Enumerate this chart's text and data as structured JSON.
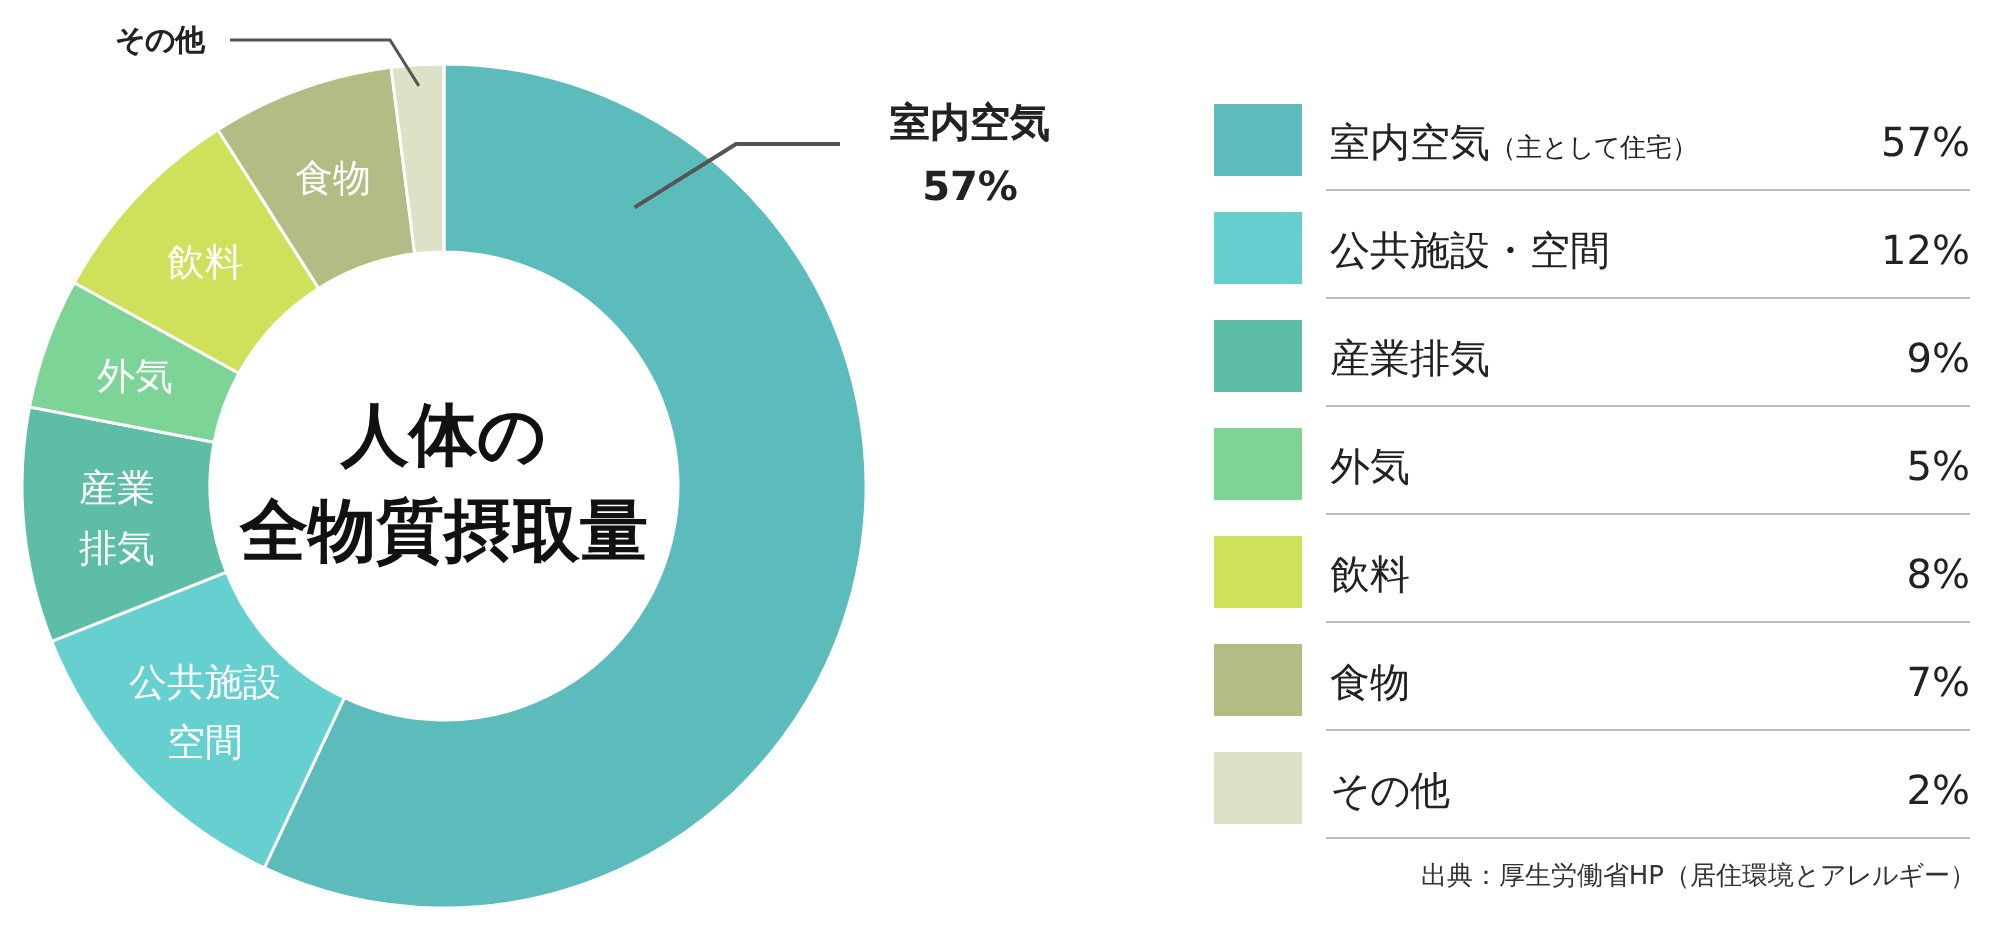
{
  "chart_data": {
    "type": "donut",
    "title": "人体の",
    "subtitle": "全物質摂取量",
    "categories": [
      "室内空気（主として住宅）",
      "公共施設・空間",
      "産業排気",
      "外気",
      "飲料",
      "食物",
      "その他"
    ],
    "values": [
      57,
      12,
      9,
      5,
      8,
      7,
      2
    ],
    "value_labels": [
      "57%",
      "12%",
      "9%",
      "5%",
      "8%",
      "7%",
      "2%"
    ],
    "colors": [
      "#5bbcbb",
      "#66cfcf",
      "#5dbea5",
      "#7dd497",
      "#cfe05b",
      "#b2bd85",
      "#dde2c6"
    ],
    "legend": "right",
    "annotations": [
      {
        "text": "室内空気",
        "x": "室内空気（主として住宅）"
      },
      {
        "text": "57%",
        "x": "室内空気（主として住宅）"
      },
      {
        "text": "公共施設",
        "x": "公共施設・空間"
      },
      {
        "text": "空間",
        "x": "公共施設・空間"
      },
      {
        "text": "産業",
        "x": "産業排気"
      },
      {
        "text": "排気",
        "x": "産業排気"
      },
      {
        "text": "外気",
        "x": "外気"
      },
      {
        "text": "飲料",
        "x": "飲料"
      },
      {
        "text": "食物",
        "x": "食物"
      },
      {
        "text": "その他",
        "x": "その他"
      },
      "出典：厚生労働省HP（居住環境とアレルギー）"
    ]
  }
}
